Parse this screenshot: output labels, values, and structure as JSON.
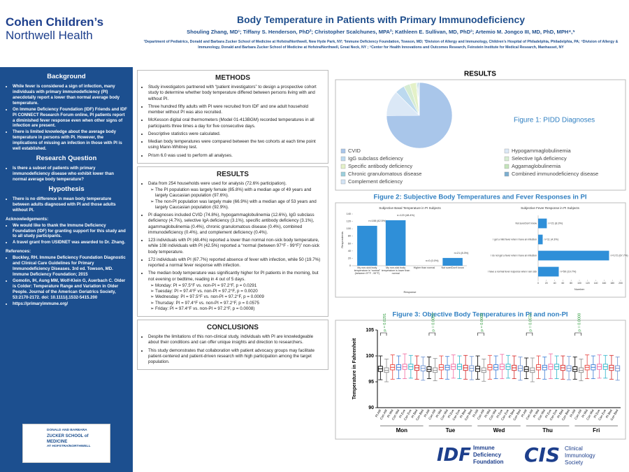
{
  "header": {
    "logo_line1": "Cohen Children’s",
    "logo_line2": "Northwell Health",
    "title": "Body Temperature in Patients with Primary Immunodeficiency",
    "authors": "Shouling Zhang, MD¹; Tiffany S. Henderson, PhD²; Christopher Scalchunes, MPA²; Kathleen E. Sullivan, MD, PhD³; Artemio M. Jongco III, MD, PhD, MPH⁴,⁵",
    "affiliations": "¹Department of Pediatrics, Donald and Barbara Zucker School of Medicine at Hofstra/Northwell, New Hyde Park, NY; ²Immune Deficiency Foundation, Towson, MD; ³Division of Allergy and Immunology, Children’s Hospital of Philadelphia, Philadelphia, PA; ⁴Division of Allergy & Immunology, Donald and Barbara Zucker School of Medicine at Hofstra/Northwell, Great Neck, NY ; ⁵Center for Health Innovations and Outcomes Research, Feinstein Institute for Medical Research, Manhasset, NY"
  },
  "left": {
    "background": {
      "heading": "Background",
      "items": [
        "While fever is considered a sign of infection, many individuals with primary immunodeficiency (PI) anecdotally report a lower than normal average body temperature.",
        "On Immune Deficiency Foundation (IDF) Friends and IDF PI CONNECT Research Forum online, PI patients report a diminished fever response even when other signs of infection are present.",
        "There is limited knowledge about the average body temperature in persons with PI. However, the implications of missing an infection in those with PI is well established."
      ]
    },
    "research_question": {
      "heading": "Research Question",
      "items": [
        "Is there a subset of patients with primary immunodeficiency disease who exhibit lower than normal average body temperature?"
      ]
    },
    "hypothesis": {
      "heading": "Hypothesis",
      "items": [
        "There is no difference in mean body temperature between adults diagnosed with PI and those adults without PI."
      ]
    },
    "acknowledgements": {
      "heading": "Acknowledgements:",
      "items": [
        "We would like to thank the Immune Deficiency Foundation (IDF) for granting support for this study and to all study participants.",
        "A travel grant from USIDNET was awarded to Dr. Zhang."
      ]
    },
    "references": {
      "heading": "References:",
      "items": [
        "Buckley, RH. Immune Deficiency Foundation Diagnostic and Clinical Care Guidelines for Primary Immunodeficiency Diseases. 3rd ed. Towson, MD. Immune Deficiency Foundation; 2015",
        "Gomolin, IH, Aung MM, Wolf-Klein G, Auerbach C. Older is Colder: Temperature Range and Variation in Older People. Journal of the American Geriatrics Society, 53:2170-2172. doi: 10.1111/j.1532-5415.200",
        "https://primaryimmune.org/"
      ]
    },
    "school_line1": "DONALD AND BARBARA",
    "school_line2": "ZUCKER SCHOOL of MEDICINE",
    "school_line3": "AT HOFSTRA/NORTHWELL"
  },
  "methods": {
    "heading": "METHODS",
    "items": [
      {
        "text": "Study investigators partnered with “patient investigators” to design a prospective cohort study to determine whether body temperature differed between persons living with and without PI."
      },
      {
        "text": "Three hundred fifty adults with PI were recruited from IDF and one adult household member without PI was also recruited."
      },
      {
        "text": "McKesson digital oral thermometers (Model 01-413BGM) recorded temperatures in all participants three times a day for five consecutive days."
      },
      {
        "text": "Descriptive statistics were calculated."
      },
      {
        "text": "Median body temperatures were compared between the two cohorts at each time point using Mann-Whitney test."
      },
      {
        "text": "Prism 6.0 was used to perform all analyses."
      }
    ]
  },
  "results": {
    "heading": "RESULTS",
    "items": [
      {
        "text": "Data from 254 households were used for analysis (72.6% participation).",
        "sub": [
          "The PI population was largely female (85.8%) with a median age of 49 years and largely Caucasian population (97.6%).",
          "The non-PI population was largely male (66.9%) with a median age of 53 years and largely Caucasian population (92.9%)."
        ]
      },
      {
        "text": "PI diagnoses included CVID (74.8%), hypogammaglobulinemia (12.6%), IgG subclass deficiency (4.7%), selective IgA deficiency (3.1%), specific antibody deficiency (3.1%), agammaglobulinemia (0.4%), chronic granulomatous disease (0.4%), combined immunodeficiency (0.4%), and complement deficiency (0.4%)."
      },
      {
        "text": "123 individuals with PI (48.4%) reported a lower than normal non-sick body temperature, while 108 individuals with PI (42.5%) reported a “normal (between 97°F - 99°F)” non-sick body temperature."
      },
      {
        "text": "172 individuals with PI (67.7%) reported absence of fever with infection, while 50 (19.7%) reported a normal fever response with infection."
      },
      {
        "text": "The median body temperature was significantly higher for PI patients in the morning, but not evening or bedtime, reading in 4 out of 5 days.",
        "sub": [
          "Monday: PI = 97.5°F vs. non-PI = 97.2°F, p = 0.0291",
          "Tuesday: PI = 97.4°F vs. non-PI = 97.2°F, p = 0.0020",
          "Wednesday: PI = 97.5°F vs. non-PI = 97.2°F, p = 0.0009",
          "Thursday: PI = 97.4°F vs. non-PI = 97.2°F, p = 0.0575",
          "Friday: PI = 97.4°F vs. non-PI = 97.2°F, p = 0.0008)"
        ]
      }
    ]
  },
  "conclusions": {
    "heading": "CONCLUSIONS",
    "items": [
      {
        "text": "Despite the limitations of this non-clinical study, individuals with PI are knowledgeable about their conditions and can offer unique insights and direction to researchers."
      },
      {
        "text": "This study demonstrates that collaboration with patient advocacy groups may facilitate patient-centered and patient-driven research with high participation among the target population."
      }
    ]
  },
  "right": {
    "heading": "RESULTS",
    "figure1": "Figure 1: PIDD Diagnoses",
    "figure2": "Figure 2: Subjective Body Temperatures and Fever Responses in PI",
    "figure3": "Figure 3: Objective Body Temperatures in PI and non-PI"
  },
  "footer": {
    "idf_mark": "IDF",
    "idf_line1": "Immune",
    "idf_line2": "Deficiency",
    "idf_line3": "Foundation",
    "cis_mark": "CIS",
    "cis_line1": "Clinical",
    "cis_line2": "Immunology",
    "cis_line3": "Society"
  },
  "chart_data": [
    {
      "type": "pie",
      "categories": [
        "CVID",
        "Hypogammaglobulinemia",
        "IgG subclass deficiency",
        "Selective IgA deficiency",
        "Specific antibody deficiency",
        "Aggamaglobulinemia",
        "Chronic granulomatous disease",
        "Combined immunodeficiency disease",
        "Complement deficiency"
      ],
      "values": [
        74.8,
        12.6,
        4.7,
        3.1,
        3.1,
        0.4,
        0.4,
        0.4,
        0.4
      ],
      "colors": [
        "#a9c6ea",
        "#dbe8f6",
        "#bcd9ef",
        "#d6ecd2",
        "#e4f1c8",
        "#c4e4bb",
        "#9ccfdc",
        "#7cafd0",
        "#d2e3f4"
      ]
    },
    {
      "type": "bar",
      "title": "Subjective Basal Temperature in PI Subjects",
      "xlabel": "Response",
      "ylabel": "Respondents",
      "categories": [
        "My non-sick body temperature is “normal” (between 97°F - 99°F)",
        "My non-sick body temperature is lower than normal",
        "Higher than normal",
        "Not sure/Don’t know"
      ],
      "values": [
        108,
        123,
        0,
        21
      ],
      "value_labels": [
        "n=108 (42.5%)",
        "n=123 (48.4%)",
        "n=0 (0.0%)",
        "n=21 (8.3%)"
      ],
      "color": "#2f8fd8",
      "ylim": [
        0,
        140
      ],
      "yticks": [
        0,
        20,
        40,
        60,
        80,
        100,
        120,
        140
      ]
    },
    {
      "type": "barh",
      "title": "Subjective Fever Response in PI Subjects",
      "xlabel": "Number",
      "categories": [
        "Not sure/Don’t know",
        "I get a mild fever when I have an infection",
        "I do not get a fever when I have an infection",
        "I have a normal fever response when I am sick"
      ],
      "values": [
        21,
        11,
        172,
        50
      ],
      "value_labels": [
        "n=21 (8.3%)",
        "n=11 (4.3%)",
        "n=172 (67.7%)",
        "n=50 (19.7%)"
      ],
      "color": "#2f8fd8",
      "xlim": [
        0,
        200
      ],
      "xticks": [
        0,
        20,
        40,
        60,
        80,
        100,
        120,
        140,
        160,
        180,
        200
      ]
    },
    {
      "type": "box",
      "ylabel": "Temperature in Fahrenheit",
      "categories": [
        "Mon",
        "Tue",
        "Wed",
        "Thu",
        "Fri"
      ],
      "annotations": [
        "p = 0.0291",
        "p = 0.0020",
        "p = 0.0009",
        "p = 0.0575",
        "p = 0.0008"
      ],
      "ylim": [
        90,
        105
      ],
      "yticks": [
        90,
        95,
        100,
        105
      ],
      "series": [
        {
          "name": "PI AM",
          "color": "#000000",
          "low": [
            95.4,
            95.6,
            95.5,
            95.6,
            95.5
          ],
          "q1": [
            97.0,
            97.0,
            97.0,
            97.0,
            97.0
          ],
          "median": [
            97.5,
            97.4,
            97.5,
            97.4,
            97.4
          ],
          "q3": [
            98.0,
            97.9,
            98.0,
            97.9,
            97.9
          ],
          "high": [
            100.0,
            99.8,
            100.0,
            99.6,
            99.8
          ]
        },
        {
          "name": "Con AM",
          "color": "#8c8c8c",
          "low": [
            95.0,
            95.2,
            95.1,
            95.0,
            95.2
          ],
          "q1": [
            96.8,
            96.8,
            96.8,
            96.8,
            96.8
          ],
          "median": [
            97.2,
            97.2,
            97.2,
            97.2,
            97.2
          ],
          "q3": [
            97.7,
            97.7,
            97.7,
            97.7,
            97.7
          ],
          "high": [
            99.4,
            99.5,
            99.4,
            99.6,
            99.4
          ]
        },
        {
          "name": "PI Mid",
          "color": "#e8413c",
          "low": [
            95.5,
            95.6,
            95.5,
            95.6,
            95.6
          ],
          "q1": [
            97.3,
            97.3,
            97.3,
            97.3,
            97.3
          ],
          "median": [
            97.8,
            97.8,
            97.8,
            97.8,
            97.8
          ],
          "q3": [
            98.3,
            98.3,
            98.3,
            98.3,
            98.2
          ],
          "high": [
            100.2,
            100.0,
            100.1,
            100.0,
            100.2
          ]
        },
        {
          "name": "Con Mid",
          "color": "#3a7bd5",
          "low": [
            95.6,
            95.5,
            95.6,
            95.5,
            95.6
          ],
          "q1": [
            97.3,
            97.3,
            97.3,
            97.3,
            97.3
          ],
          "median": [
            97.8,
            97.8,
            97.8,
            97.8,
            97.8
          ],
          "q3": [
            98.3,
            98.2,
            98.3,
            98.2,
            98.3
          ],
          "high": [
            100.0,
            99.9,
            100.0,
            99.8,
            100.0
          ]
        },
        {
          "name": "PI Eve",
          "color": "#f06aa0",
          "low": [
            95.6,
            95.7,
            95.6,
            95.6,
            95.7
          ],
          "q1": [
            97.4,
            97.4,
            97.4,
            97.4,
            97.4
          ],
          "median": [
            97.9,
            97.9,
            97.9,
            97.9,
            97.9
          ],
          "q3": [
            98.4,
            98.4,
            98.4,
            98.4,
            98.4
          ],
          "high": [
            100.4,
            100.2,
            100.3,
            100.4,
            100.2
          ]
        },
        {
          "name": "Con Eve",
          "color": "#2bb3c8",
          "low": [
            95.7,
            95.6,
            95.7,
            95.6,
            95.7
          ],
          "q1": [
            97.4,
            97.4,
            97.4,
            97.4,
            97.4
          ],
          "median": [
            97.9,
            97.9,
            97.9,
            97.9,
            97.9
          ],
          "q3": [
            98.4,
            98.4,
            98.4,
            98.4,
            98.4
          ],
          "high": [
            100.1,
            100.0,
            100.1,
            100.0,
            100.1
          ]
        },
        {
          "name": "PI Bed",
          "color": "#d42020",
          "low": [
            95.5,
            95.5,
            95.6,
            95.5,
            95.5
          ],
          "q1": [
            97.2,
            97.2,
            97.2,
            97.2,
            97.2
          ],
          "median": [
            97.7,
            97.7,
            97.7,
            97.7,
            97.7
          ],
          "q3": [
            98.2,
            98.2,
            98.2,
            98.2,
            98.2
          ],
          "high": [
            100.0,
            100.1,
            100.0,
            100.0,
            100.1
          ]
        },
        {
          "name": "Con Bed",
          "color": "#6a8fd0",
          "low": [
            95.3,
            95.4,
            95.3,
            95.4,
            95.3
          ],
          "q1": [
            97.1,
            97.1,
            97.1,
            97.1,
            97.1
          ],
          "median": [
            97.6,
            97.6,
            97.6,
            97.6,
            97.6
          ],
          "q3": [
            98.1,
            98.1,
            98.1,
            98.1,
            98.1
          ],
          "high": [
            99.8,
            99.9,
            99.8,
            99.9,
            99.8
          ]
        }
      ]
    }
  ]
}
